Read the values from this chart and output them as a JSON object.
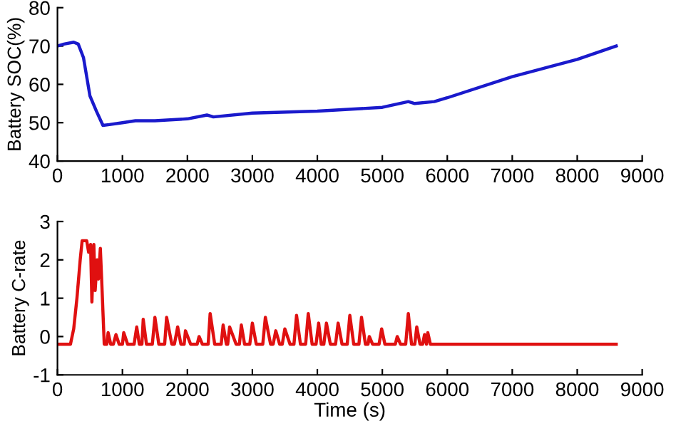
{
  "chart_data": [
    {
      "type": "line",
      "ylabel": "Battery SOC(%)",
      "xlim": [
        0,
        9000
      ],
      "ylim": [
        40,
        80
      ],
      "xticks": [
        0,
        1000,
        2000,
        3000,
        4000,
        5000,
        6000,
        7000,
        8000,
        9000
      ],
      "yticks": [
        40,
        50,
        60,
        70,
        80
      ],
      "series": [
        {
          "color": "#1a1acc",
          "x": [
            0,
            100,
            250,
            320,
            400,
            500,
            600,
            700,
            800,
            1000,
            1200,
            1500,
            2000,
            2300,
            2400,
            3000,
            4000,
            5000,
            5400,
            5500,
            5800,
            6000,
            7000,
            8000,
            8600
          ],
          "values": [
            70,
            70.5,
            71,
            70.5,
            67,
            57,
            53,
            49.3,
            49.5,
            50,
            50.5,
            50.5,
            51,
            52,
            51.5,
            52.5,
            53,
            54,
            55.5,
            55,
            55.5,
            56.5,
            62,
            66.5,
            70
          ]
        }
      ]
    },
    {
      "type": "line",
      "xlabel": "Time (s)",
      "ylabel": "Battery C-rate",
      "xlim": [
        0,
        9000
      ],
      "ylim": [
        -1,
        3
      ],
      "xticks": [
        0,
        1000,
        2000,
        3000,
        4000,
        5000,
        6000,
        7000,
        8000,
        9000
      ],
      "yticks": [
        -1,
        0,
        1,
        2,
        3
      ],
      "series": [
        {
          "color": "#e01010",
          "x": [
            0,
            200,
            250,
            300,
            350,
            380,
            450,
            480,
            510,
            530,
            560,
            580,
            610,
            630,
            660,
            680,
            720,
            760,
            780,
            820,
            860,
            900,
            950,
            1000,
            1020,
            1080,
            1180,
            1220,
            1260,
            1300,
            1320,
            1370,
            1460,
            1500,
            1560,
            1650,
            1680,
            1760,
            1800,
            1850,
            1900,
            1950,
            1970,
            2050,
            2150,
            2180,
            2230,
            2320,
            2350,
            2420,
            2520,
            2550,
            2600,
            2620,
            2650,
            2750,
            2800,
            2830,
            2880,
            2960,
            3000,
            3060,
            3160,
            3200,
            3280,
            3320,
            3360,
            3420,
            3460,
            3500,
            3580,
            3640,
            3680,
            3740,
            3820,
            3860,
            3920,
            3980,
            4020,
            4060,
            4100,
            4140,
            4200,
            4280,
            4320,
            4380,
            4460,
            4500,
            4560,
            4640,
            4680,
            4740,
            4780,
            4800,
            4850,
            4950,
            4990,
            5040,
            5200,
            5230,
            5280,
            5360,
            5400,
            5450,
            5500,
            5530,
            5580,
            5620,
            5650,
            5680,
            5700,
            5740,
            8600
          ],
          "values": [
            -0.2,
            -0.2,
            0.2,
            1,
            2,
            2.5,
            2.5,
            2.2,
            2.4,
            0.9,
            2.4,
            1.2,
            2,
            1.5,
            2.3,
            1.5,
            -0.2,
            -0.2,
            0.1,
            -0.2,
            -0.2,
            0.05,
            -0.2,
            -0.2,
            0.1,
            -0.2,
            -0.2,
            0.25,
            -0.2,
            -0.2,
            0.45,
            -0.2,
            -0.2,
            0.5,
            -0.2,
            -0.2,
            0.5,
            -0.2,
            -0.2,
            0.25,
            -0.2,
            -0.2,
            0.15,
            -0.2,
            -0.2,
            0,
            -0.2,
            -0.2,
            0.6,
            -0.2,
            -0.2,
            0.3,
            -0.2,
            -0.2,
            0.25,
            -0.2,
            -0.2,
            0.3,
            -0.2,
            -0.2,
            0.35,
            -0.2,
            -0.2,
            0.5,
            -0.2,
            -0.2,
            0.15,
            -0.2,
            -0.2,
            0.2,
            -0.2,
            -0.2,
            0.55,
            -0.2,
            -0.2,
            0.6,
            -0.2,
            -0.2,
            0.35,
            -0.2,
            -0.2,
            0.35,
            -0.2,
            -0.2,
            0.35,
            -0.2,
            -0.2,
            0.55,
            -0.2,
            -0.2,
            0.5,
            -0.2,
            -0.2,
            0,
            -0.2,
            -0.2,
            0.2,
            -0.2,
            -0.2,
            0,
            -0.2,
            -0.2,
            0.6,
            -0.2,
            -0.2,
            0.25,
            -0.2,
            -0.2,
            0.05,
            -0.2,
            0.1,
            -0.2,
            -0.2
          ]
        }
      ]
    }
  ]
}
